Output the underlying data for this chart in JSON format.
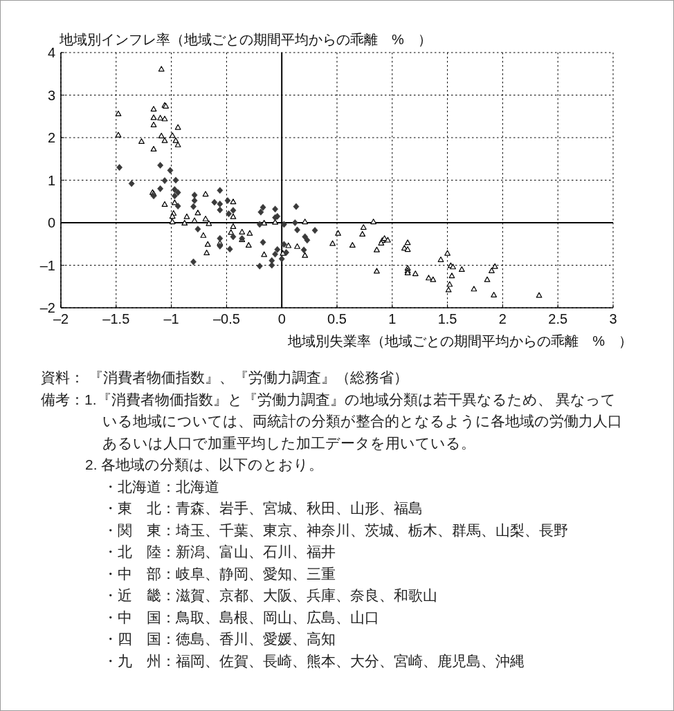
{
  "chart_data": {
    "type": "scatter",
    "ylabel": "地域別インフレ率（地域ごとの期間平均からの乖離　%　）",
    "xlabel": "地域別失業率（地域ごとの期間平均からの乖離　%　）",
    "xlim": [
      -2,
      3
    ],
    "ylim": [
      -2,
      4
    ],
    "xticks": [
      {
        "value": -2,
        "label": "–2"
      },
      {
        "value": -1.5,
        "label": "–1.5"
      },
      {
        "value": -1,
        "label": "–1"
      },
      {
        "value": -0.5,
        "label": "–0.5"
      },
      0,
      0.5,
      1,
      1.5,
      2,
      2.5,
      3
    ],
    "yticks": [
      {
        "value": -2,
        "label": "–2"
      },
      {
        "value": -1,
        "label": "–1"
      },
      0,
      1,
      2,
      3,
      4
    ],
    "grid": true,
    "series": [
      {
        "marker": "triangle",
        "color": "#000000",
        "x": [
          -1.09,
          -1.48,
          -1.48,
          -1.16,
          -1.06,
          -1.05,
          -1.16,
          -1.1,
          -1.06,
          -1.16,
          -0.94,
          -1.09,
          -0.99,
          -1.27,
          -1.06,
          -0.96,
          -0.94,
          -1.16,
          -1.17,
          -1.16,
          -1.06,
          -0.97,
          -0.98,
          -0.99,
          -0.99,
          -0.86,
          -0.88,
          -0.76,
          -0.79,
          -0.69,
          -0.69,
          -0.66,
          -0.71,
          -0.67,
          -0.68,
          -0.56,
          -0.44,
          -0.44,
          -0.44,
          -0.46,
          -0.36,
          -0.29,
          -0.36,
          -0.3,
          -0.16,
          -0.06,
          0.21,
          -0.16,
          0.01,
          0.06,
          0.14,
          0.21,
          0.51,
          0.46,
          0.64,
          0.74,
          0.73,
          0.83,
          0.86,
          0.91,
          0.9,
          0.93,
          0.96,
          0.86,
          1.14,
          1.11,
          1.14,
          1.14,
          1.14,
          1.14,
          1.21,
          1.33,
          1.37,
          1.5,
          1.44,
          1.53,
          1.55,
          1.63,
          1.54,
          1.52,
          1.51,
          1.74,
          1.86,
          1.9,
          1.93,
          1.92,
          2.33
        ],
        "values": [
          3.61,
          2.56,
          2.06,
          2.67,
          2.76,
          2.74,
          2.47,
          2.46,
          2.44,
          2.3,
          2.24,
          2.04,
          2.05,
          1.91,
          1.93,
          1.93,
          1.83,
          1.73,
          0.71,
          0.68,
          0.43,
          0.47,
          0.22,
          0.15,
          0.02,
          0.14,
          -0.01,
          0.23,
          0.05,
          0.67,
          0.09,
          -0.02,
          -0.3,
          -0.51,
          -0.71,
          -0.48,
          0.49,
          0.14,
          -0.09,
          -0.23,
          -0.22,
          -0.25,
          -0.4,
          -0.53,
          -0.01,
          0.01,
          0.02,
          -0.75,
          -0.72,
          -0.54,
          -0.56,
          -0.77,
          -0.25,
          -0.49,
          -0.53,
          -0.11,
          -0.27,
          0.02,
          -0.64,
          -0.42,
          -0.48,
          -0.37,
          -0.41,
          -1.14,
          -0.47,
          -0.6,
          -0.63,
          -1.07,
          -1.13,
          -1.18,
          -1.2,
          -1.3,
          -1.34,
          -0.72,
          -0.87,
          -1.01,
          -1.04,
          -1.1,
          -1.25,
          -1.45,
          -1.58,
          -1.56,
          -1.34,
          -1.13,
          -1.03,
          -1.7,
          -1.71
        ]
      },
      {
        "marker": "diamond",
        "color": "#3a3a3a",
        "x": [
          -1.47,
          -1.1,
          -1.01,
          -1.36,
          -1.06,
          -0.96,
          -1.1,
          -1.16,
          -0.97,
          -0.94,
          -0.97,
          -0.94,
          -0.79,
          -0.79,
          -0.8,
          -0.56,
          -0.61,
          -0.56,
          -0.56,
          -0.49,
          -0.48,
          -0.44,
          -0.19,
          -0.17,
          -0.2,
          -0.76,
          -0.44,
          -0.56,
          -0.56,
          -0.36,
          -0.47,
          -0.8,
          -0.2,
          -0.17,
          -0.06,
          -0.06,
          -0.04,
          0.13,
          0.02,
          0.12,
          0.14,
          0.3,
          0.21,
          0.23,
          0.02,
          -0.04,
          0.04,
          -0.06,
          0.2,
          -0.09,
          0.0,
          -0.09
        ],
        "values": [
          1.3,
          1.35,
          1.23,
          0.92,
          0.99,
          1.0,
          0.8,
          0.63,
          0.78,
          0.71,
          0.63,
          0.39,
          0.65,
          0.52,
          0.38,
          0.76,
          0.48,
          0.44,
          0.3,
          0.52,
          0.21,
          0.29,
          0.25,
          0.36,
          -0.04,
          -0.15,
          -0.33,
          -0.37,
          -0.55,
          -0.37,
          -0.62,
          -0.92,
          -1.02,
          -0.46,
          0.32,
          0.12,
          0.15,
          0.38,
          -0.04,
          0.0,
          -0.17,
          -0.18,
          -0.33,
          -0.41,
          -0.51,
          -0.63,
          -0.7,
          -0.74,
          -0.64,
          -0.89,
          -0.85,
          -1.0
        ]
      }
    ],
    "annotations": [
      "資料： 『消費者物価指数』、『労働力調査』（総務省）",
      "備考：1.『消費者物価指数』と『労働力調査』の地域分類は若干異なるため、 異なっている地域については、両統計の分類が整合的となるように各地域の労働力人口あるいは人口で加重平均した加工データを用いている。",
      "2. 各地域の分類は、以下のとおり。",
      "・北海道：北海道",
      "・東　北：青森、岩手、宮城、秋田、山形、福島",
      "・関　東：埼玉、千葉、東京、神奈川、茨城、栃木、群馬、山梨、長野",
      "・北　陸：新潟、富山、石川、福井",
      "・中　部：岐阜、静岡、愛知、三重",
      "・近　畿：滋賀、京都、大阪、兵庫、奈良、和歌山",
      "・中　国：鳥取、島根、岡山、広島、山口",
      "・四　国：徳島、香川、愛媛、高知",
      "・九　州：福岡、佐賀、長崎、熊本、大分、宮崎、鹿児島、沖縄"
    ]
  }
}
